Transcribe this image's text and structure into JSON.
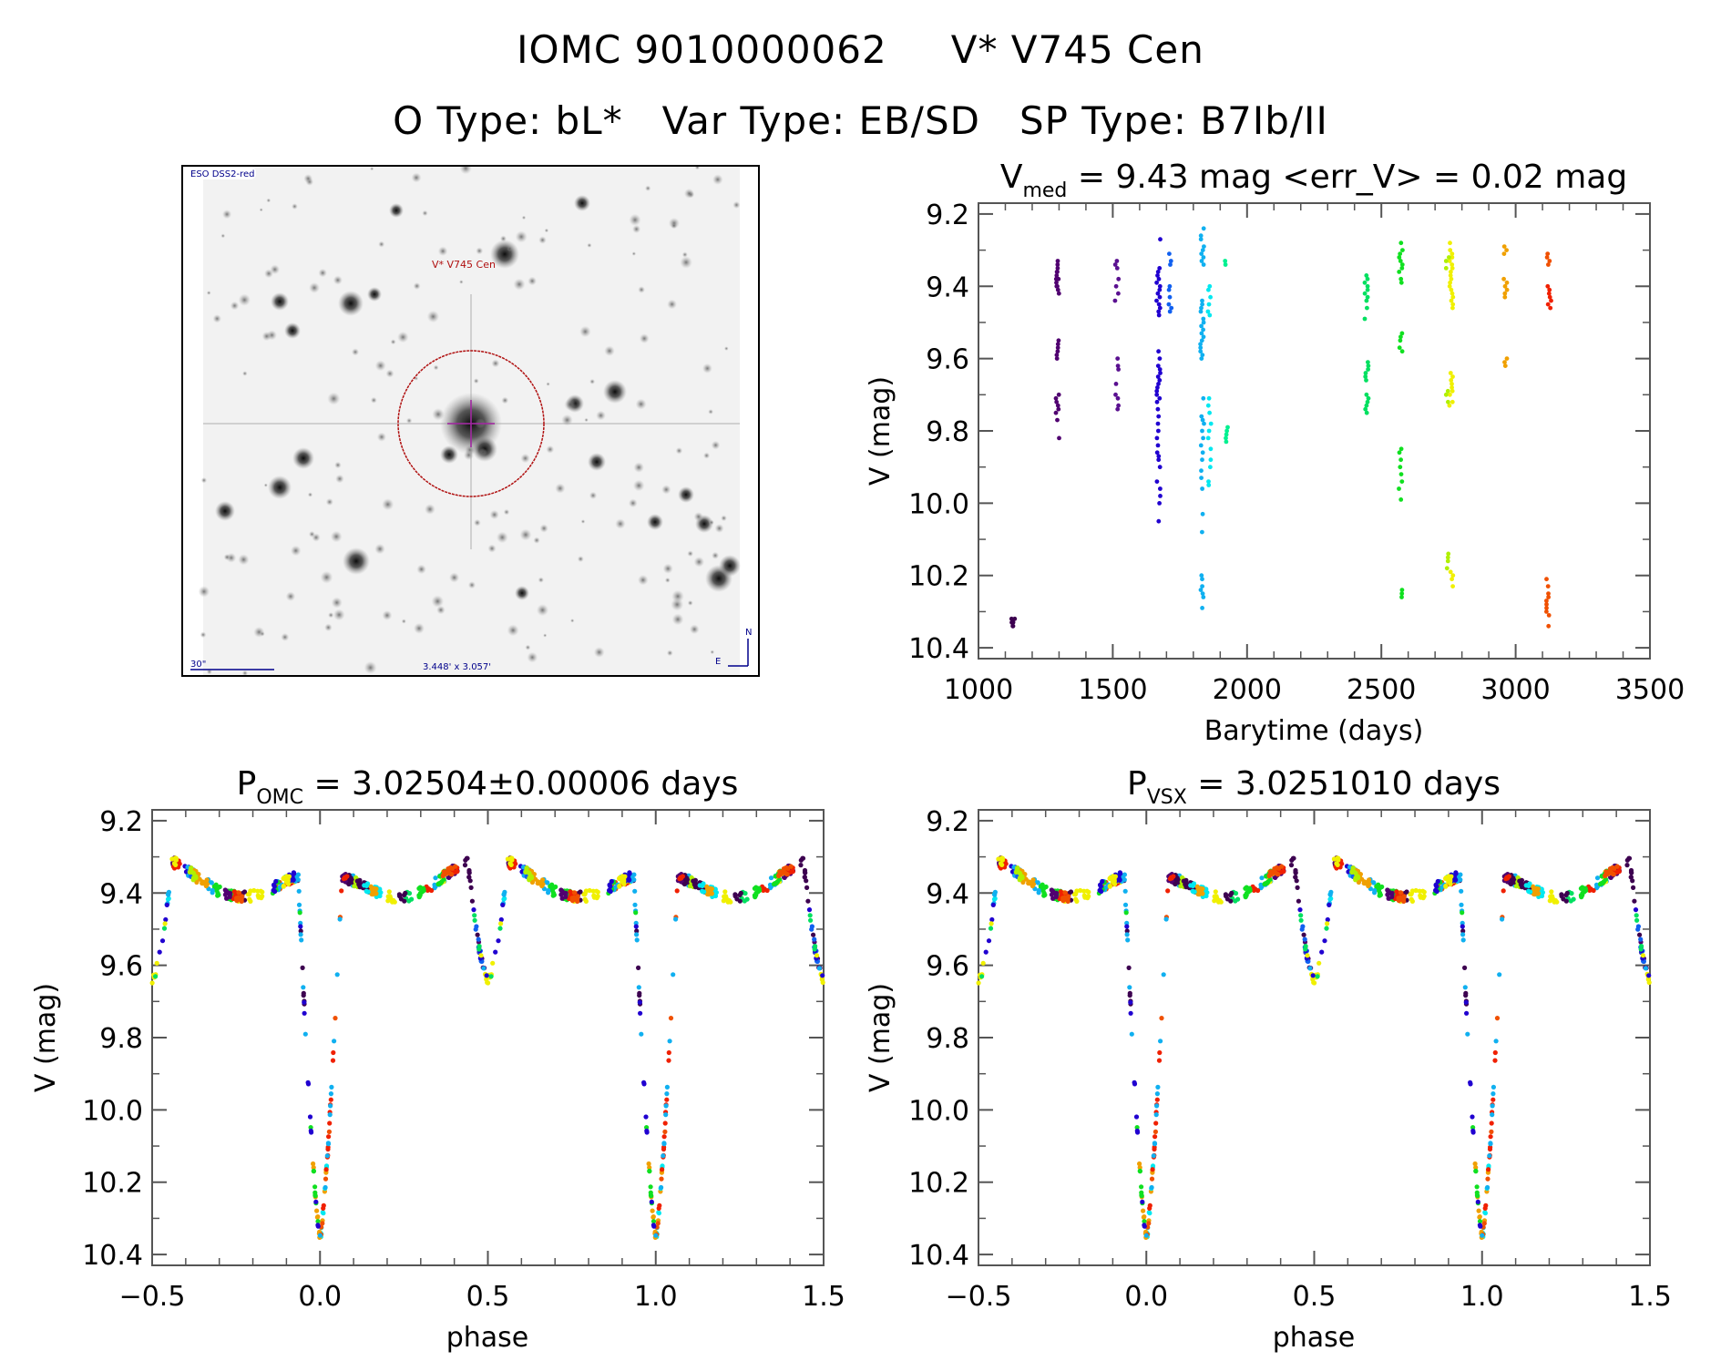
{
  "header": {
    "line1_id": "IOMC 9010000062",
    "line1_name": "V* V745 Cen",
    "line2": "O Type: bL*   Var Type: EB/SD   SP Type: B7Ib/II"
  },
  "finder_image": {
    "survey_label": "ESO DSS2-red",
    "target_label": "V* V745 Cen",
    "scale_label": "30\"",
    "fov_label": "3.448' x 3.057'",
    "north_label": "N",
    "east_label": "E",
    "circle_color": "#b01010",
    "crosshair_color": "#a020a0",
    "annotation_color": "#00008b"
  },
  "chart_data": [
    {
      "id": "lightcurve",
      "type": "scatter",
      "title_main": "V",
      "title_sub": "med",
      "title_rest": " = 9.43 mag <err_V> = 0.02 mag",
      "xlabel": "Barytime (days)",
      "ylabel": "V (mag)",
      "xlim": [
        1000,
        3500
      ],
      "ylim": [
        10.43,
        9.17
      ],
      "xticks": [
        1000,
        1500,
        2000,
        2500,
        3000,
        3500
      ],
      "yticks": [
        9.2,
        9.4,
        9.6,
        9.8,
        10.0,
        10.2,
        10.4
      ],
      "ytick_labels": [
        "9.2",
        "9.4",
        "9.6",
        "9.8",
        "10.0",
        "10.2",
        "10.4"
      ],
      "xtick_labels": [
        "1000",
        "1500",
        "2000",
        "2500",
        "3000",
        "3500"
      ],
      "series": [
        {
          "name": "season-1130",
          "color": "#3d0050",
          "x": 1130,
          "mags": [
            10.32,
            10.33,
            10.34,
            10.33,
            10.32,
            10.34
          ]
        },
        {
          "name": "season-1295",
          "color": "#500070",
          "x": 1295,
          "mags": [
            9.33,
            9.34,
            9.35,
            9.36,
            9.37,
            9.38,
            9.39,
            9.4,
            9.41,
            9.42,
            9.36,
            9.38,
            9.4,
            9.55,
            9.56,
            9.57,
            9.58,
            9.59,
            9.6,
            9.7,
            9.71,
            9.72,
            9.73,
            9.74,
            9.75,
            9.77,
            9.82
          ]
        },
        {
          "name": "season-1515",
          "color": "#5a1090",
          "x": 1515,
          "mags": [
            9.33,
            9.34,
            9.35,
            9.38,
            9.4,
            9.42,
            9.44,
            9.6,
            9.62,
            9.63,
            9.67,
            9.7,
            9.71,
            9.73,
            9.74
          ]
        },
        {
          "name": "season-1670",
          "color": "#2000d0",
          "x": 1670,
          "mags": [
            9.27,
            9.35,
            9.36,
            9.37,
            9.38,
            9.39,
            9.4,
            9.41,
            9.42,
            9.43,
            9.44,
            9.45,
            9.46,
            9.47,
            9.48,
            9.58,
            9.6,
            9.62,
            9.63,
            9.64,
            9.65,
            9.66,
            9.67,
            9.68,
            9.69,
            9.7,
            9.71,
            9.72,
            9.74,
            9.76,
            9.78,
            9.8,
            9.82,
            9.84,
            9.86,
            9.87,
            9.88,
            9.9,
            9.94,
            9.96,
            9.98,
            10.0,
            10.05
          ]
        },
        {
          "name": "season-1710",
          "color": "#1060f0",
          "x": 1712,
          "mags": [
            9.31,
            9.33,
            9.34,
            9.4,
            9.41,
            9.43,
            9.45,
            9.46,
            9.47
          ]
        },
        {
          "name": "season-1830",
          "color": "#10b0f0",
          "x": 1833,
          "mags": [
            9.24,
            9.26,
            9.27,
            9.29,
            9.3,
            9.31,
            9.32,
            9.33,
            9.34,
            9.44,
            9.45,
            9.46,
            9.47,
            9.49,
            9.5,
            9.51,
            9.52,
            9.53,
            9.54,
            9.55,
            9.56,
            9.57,
            9.58,
            9.59,
            9.6,
            9.71,
            9.76,
            9.77,
            9.78,
            9.8,
            9.82,
            9.84,
            9.86,
            9.88,
            9.91,
            9.93,
            9.96,
            10.03,
            10.08,
            10.2,
            10.21,
            10.23,
            10.24,
            10.25,
            10.26,
            10.29
          ]
        },
        {
          "name": "season-1860",
          "color": "#00e8f0",
          "x": 1860,
          "mags": [
            9.4,
            9.41,
            9.43,
            9.45,
            9.47,
            9.48,
            9.71,
            9.73,
            9.75,
            9.78,
            9.8,
            9.82,
            9.85,
            9.88,
            9.9,
            9.94,
            9.95
          ]
        },
        {
          "name": "season-1920",
          "color": "#00f090",
          "x": 1922,
          "mags": [
            9.33,
            9.34,
            9.79,
            9.8,
            9.81,
            9.82,
            9.83
          ]
        },
        {
          "name": "season-2445",
          "color": "#00e060",
          "x": 2445,
          "mags": [
            9.37,
            9.38,
            9.39,
            9.4,
            9.41,
            9.42,
            9.43,
            9.44,
            9.46,
            9.49,
            9.61,
            9.62,
            9.63,
            9.64,
            9.65,
            9.66,
            9.7,
            9.71,
            9.72,
            9.73,
            9.74,
            9.75
          ]
        },
        {
          "name": "season-2570",
          "color": "#10e020",
          "x": 2572,
          "mags": [
            9.28,
            9.3,
            9.31,
            9.32,
            9.33,
            9.34,
            9.35,
            9.36,
            9.38,
            9.39,
            9.53,
            9.54,
            9.55,
            9.57,
            9.58,
            9.85,
            9.86,
            9.88,
            9.9,
            9.92,
            9.94,
            9.96,
            9.99,
            10.24,
            10.25,
            10.26
          ]
        },
        {
          "name": "season-2745",
          "color": "#f0f000",
          "x": 2760,
          "mags": [
            9.28,
            9.3,
            9.31,
            9.32,
            9.33,
            9.34,
            9.35,
            9.36,
            9.37,
            9.38,
            9.39,
            9.4,
            9.41,
            9.42,
            9.43,
            9.44,
            9.45,
            9.46,
            9.64,
            9.65,
            9.66,
            9.67,
            9.68,
            9.69,
            9.7,
            9.72,
            9.73,
            10.19,
            10.2,
            10.21,
            10.23
          ]
        },
        {
          "name": "season-2745b",
          "color": "#b0f000",
          "x": 2748,
          "mags": [
            9.32,
            9.33,
            9.35,
            9.69,
            9.7,
            9.72,
            10.14,
            10.15,
            10.16,
            10.18
          ]
        },
        {
          "name": "season-2960",
          "color": "#f0a000",
          "x": 2962,
          "mags": [
            9.29,
            9.3,
            9.31,
            9.38,
            9.39,
            9.4,
            9.41,
            9.42,
            9.43,
            9.6,
            9.61,
            9.62
          ]
        },
        {
          "name": "season-3120",
          "color": "#f05000",
          "x": 3120,
          "mags": [
            9.31,
            9.32,
            9.33,
            9.34,
            10.21,
            10.23,
            10.25,
            10.26,
            10.27,
            10.28,
            10.29,
            10.3,
            10.31,
            10.34
          ]
        },
        {
          "name": "season-3125",
          "color": "#f02000",
          "x": 3126,
          "mags": [
            9.4,
            9.41,
            9.42,
            9.43,
            9.44,
            9.45,
            9.46
          ]
        }
      ]
    },
    {
      "id": "phase-omc",
      "type": "scatter",
      "title_main": "P",
      "title_sub": "OMC",
      "title_rest": " = 3.02504±0.00006 days",
      "xlabel": "phase",
      "ylabel": "V (mag)",
      "xlim": [
        -0.5,
        1.5
      ],
      "ylim": [
        10.43,
        9.17
      ],
      "xticks": [
        -0.5,
        0.0,
        0.5,
        1.0,
        1.5
      ],
      "xtick_labels": [
        "−0.5",
        "0.0",
        "0.5",
        "1.0",
        "1.5"
      ],
      "yticks": [
        9.2,
        9.4,
        9.6,
        9.8,
        10.0,
        10.2,
        10.4
      ],
      "ytick_labels": [
        "9.2",
        "9.4",
        "9.6",
        "9.8",
        "10.0",
        "10.2",
        "10.4"
      ],
      "model": {
        "primary_eclipse_depth_mag": 10.33,
        "secondary_eclipse_depth_mag": 9.75,
        "maximum_mag": 9.32,
        "primary_phase": 0.0,
        "secondary_phase": 0.5
      },
      "colors": [
        "#3d0050",
        "#500070",
        "#2000d0",
        "#1060f0",
        "#10b0f0",
        "#00e8f0",
        "#00e060",
        "#10e020",
        "#b0f000",
        "#f0f000",
        "#f0a000",
        "#f05000",
        "#f02000"
      ]
    },
    {
      "id": "phase-vsx",
      "type": "scatter",
      "title_main": "P",
      "title_sub": "VSX",
      "title_rest": " = 3.0251010 days",
      "xlabel": "phase",
      "ylabel": "V (mag)",
      "xlim": [
        -0.5,
        1.5
      ],
      "ylim": [
        10.43,
        9.17
      ],
      "xticks": [
        -0.5,
        0.0,
        0.5,
        1.0,
        1.5
      ],
      "xtick_labels": [
        "−0.5",
        "0.0",
        "0.5",
        "1.0",
        "1.5"
      ],
      "yticks": [
        9.2,
        9.4,
        9.6,
        9.8,
        10.0,
        10.2,
        10.4
      ],
      "ytick_labels": [
        "9.2",
        "9.4",
        "9.6",
        "9.8",
        "10.0",
        "10.2",
        "10.4"
      ],
      "model": {
        "primary_eclipse_depth_mag": 10.33,
        "secondary_eclipse_depth_mag": 9.75,
        "maximum_mag": 9.32,
        "primary_phase": 0.0,
        "secondary_phase": 0.5
      },
      "colors": [
        "#3d0050",
        "#500070",
        "#2000d0",
        "#1060f0",
        "#10b0f0",
        "#00e8f0",
        "#00e060",
        "#10e020",
        "#b0f000",
        "#f0f000",
        "#f0a000",
        "#f05000",
        "#f02000"
      ]
    }
  ]
}
